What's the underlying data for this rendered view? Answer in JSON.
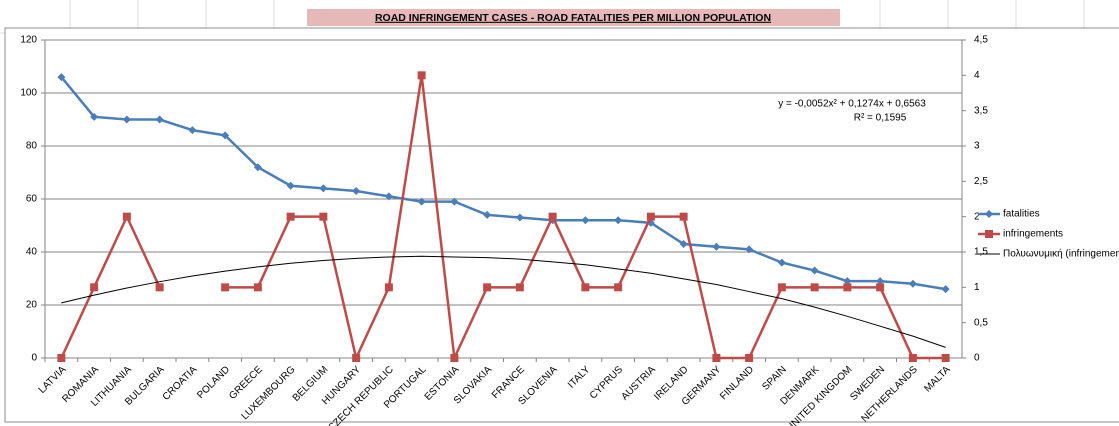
{
  "chart_data": {
    "type": "line",
    "title": "ROAD INFRINGEMENT CASES - ROAD FATALITIES PER MILLION POPULATION",
    "categories": [
      "LATVIA",
      "ROMANIA",
      "LITHUANIA",
      "BULGARIA",
      "CROATIA",
      "POLAND",
      "GREECE",
      "LUXEMBOURG",
      "BELGIUM",
      "HUNGARY",
      "CZECH REPUBLIC",
      "PORTUGAL",
      "ESTONIA",
      "SLOVAKIA",
      "FRANCE",
      "SLOVENIA",
      "ITALY",
      "CYPRUS",
      "AUSTRIA",
      "IRELAND",
      "GERMANY",
      "FINLAND",
      "SPAIN",
      "DENMARK",
      "UNITED KINGDOM",
      "SWEDEN",
      "NETHERLANDS",
      "MALTA"
    ],
    "series": [
      {
        "name": "fatalities",
        "color": "#4a7ebb",
        "marker": "diamond",
        "values": [
          106,
          91,
          90,
          90,
          86,
          84,
          72,
          65,
          64,
          63,
          61,
          59,
          59,
          54,
          53,
          52,
          52,
          52,
          51,
          43,
          42,
          41,
          36,
          33,
          29,
          29,
          28,
          26
        ]
      },
      {
        "name": "infringements",
        "color": "#be4b48",
        "marker": "square",
        "axis": "y2",
        "values": [
          0,
          1,
          2,
          1,
          null,
          1,
          1,
          2,
          2,
          0,
          1,
          4,
          0,
          1,
          1,
          2,
          1,
          1,
          2,
          2,
          0,
          0,
          1,
          1,
          1,
          1,
          0,
          0
        ]
      },
      {
        "name": "Πολυωνυμική (infringements)",
        "color": "#000000",
        "marker": "none",
        "axis": "y2",
        "values": [
          0.78,
          0.89,
          0.99,
          1.08,
          1.16,
          1.23,
          1.29,
          1.34,
          1.38,
          1.41,
          1.43,
          1.44,
          1.43,
          1.42,
          1.4,
          1.36,
          1.32,
          1.26,
          1.2,
          1.12,
          1.04,
          0.94,
          0.84,
          0.72,
          0.59,
          0.45,
          0.31,
          0.15
        ]
      }
    ],
    "annotation": [
      "y = -0,0052x² + 0,1274x + 0,6563",
      "R² = 0,1595"
    ],
    "ylim": [
      0,
      120
    ],
    "yticks": [
      0,
      20,
      40,
      60,
      80,
      100,
      120
    ],
    "y2lim": [
      0,
      4.5
    ],
    "y2ticks": [
      0,
      {
        "value": 0.5,
        "label": "0,5"
      },
      1,
      {
        "value": 1.5,
        "label": "1,5"
      },
      2,
      {
        "value": 2.5,
        "label": "2,5"
      },
      3,
      {
        "value": 3.5,
        "label": "3,5"
      },
      4,
      {
        "value": 4.5,
        "label": "4,5"
      }
    ],
    "grid": true
  }
}
